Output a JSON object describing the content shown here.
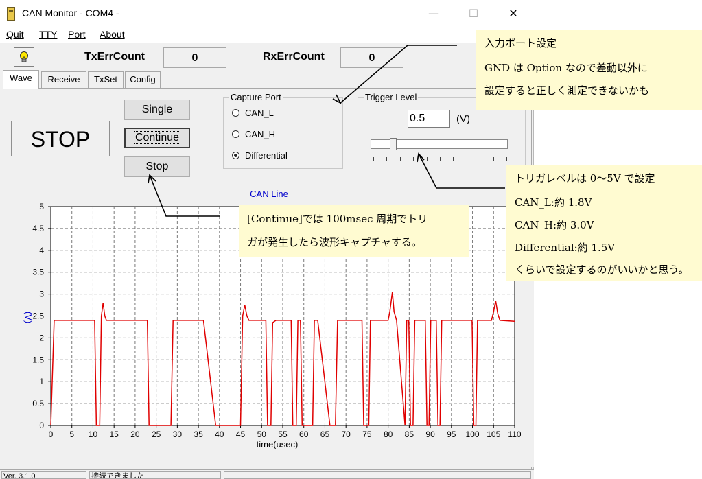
{
  "window": {
    "title": "CAN Monitor - COM4 -",
    "controls": {
      "minimize": "—",
      "maximize": "☐",
      "close": "✕"
    }
  },
  "menu": [
    "Quit",
    "TTY",
    "Port",
    "About"
  ],
  "status_row": {
    "tx_label": "TxErrCount",
    "tx_value": "0",
    "rx_label": "RxErrCount",
    "rx_value": "0"
  },
  "tabs": [
    "Wave",
    "Receive",
    "TxSet",
    "Config"
  ],
  "active_tab": "Wave",
  "state_display": "STOP",
  "buttons": {
    "single": "Single",
    "continue": "Continue",
    "stop": "Stop"
  },
  "capture_port": {
    "title": "Capture Port",
    "options": [
      "CAN_L",
      "CAN_H",
      "Differential"
    ],
    "selected": "Differential"
  },
  "trigger": {
    "title": "Trigger Level",
    "value": "0.5",
    "unit": "(V)",
    "slider_level_fraction": 0.1
  },
  "statusbar": {
    "version": "Ver. 3.1.0",
    "message": "接続できました",
    "extra": ""
  },
  "callouts": {
    "port": [
      "入力ポート設定",
      "GND は Option なので差動以外に",
      "設定すると正しく測定できないかも"
    ],
    "trigger": [
      "トリガレベルは 0～5V で設定",
      "CAN_L:約 1.8V",
      "CAN_H:約 3.0V",
      "Differential:約 1.5V",
      "くらいで設定するのがいいかと思う。"
    ],
    "continue": [
      "[Continue]では 100msec 周期でトリ",
      "ガが発生したら波形キャプチャする。"
    ]
  },
  "colors": {
    "trace": "#e00000",
    "title_blue": "#0000cc",
    "callout_bg": "#fffbd1",
    "grid": "#7a7a7a"
  },
  "chart_data": {
    "type": "line",
    "title": "CAN Line",
    "xlabel": "time(usec)",
    "ylabel": "(V)",
    "xlim": [
      0,
      110
    ],
    "ylim": [
      0,
      5
    ],
    "xticks": [
      0,
      5,
      10,
      15,
      20,
      25,
      30,
      35,
      40,
      45,
      50,
      55,
      60,
      65,
      70,
      75,
      80,
      85,
      90,
      95,
      100,
      105,
      110
    ],
    "yticks": [
      0,
      0.5,
      1,
      1.5,
      2,
      2.5,
      3,
      3.5,
      4,
      4.5,
      5
    ],
    "grid": true,
    "series": [
      {
        "x": [
          0,
          0.8,
          1.2,
          10.4,
          10.8,
          11.6,
          12,
          12.4,
          12.8,
          13.2,
          14,
          14.5,
          19,
          22.9,
          23.3,
          23.7,
          28.5,
          29,
          35.8,
          36.2,
          39.1,
          39.5,
          45,
          45.5,
          46,
          46.5,
          47,
          51,
          51.4,
          52.2,
          52.6,
          53.4,
          57,
          57.4,
          58.2,
          58.6,
          59.2,
          59.6,
          62.1,
          62.5,
          62.9,
          63.3,
          66.2,
          66.6,
          67.5,
          68,
          68.4,
          68.8,
          73.8,
          74.2,
          75.4,
          75.8,
          80,
          80.4,
          81,
          81.4,
          82,
          84,
          84.4,
          84.9,
          85.3,
          85.9,
          86.3,
          88.8,
          89.2,
          89.7,
          90.1,
          91.4,
          91.8,
          92.3,
          92.7,
          99.9,
          100.3,
          100.8,
          101.2,
          104.5,
          105,
          105.5,
          106,
          106.5,
          110
        ],
        "values": [
          0,
          2.4,
          2.4,
          2.4,
          0,
          0,
          2.5,
          2.8,
          2.5,
          2.4,
          2.4,
          2.4,
          2.4,
          2.4,
          0,
          0,
          0,
          2.4,
          2.4,
          2.4,
          0,
          0,
          0,
          2.5,
          2.75,
          2.5,
          2.4,
          2.4,
          0,
          0,
          2.35,
          2.4,
          2.4,
          0,
          0,
          2.4,
          2.4,
          0,
          0,
          2.4,
          2.4,
          2.4,
          0,
          0,
          0,
          2.4,
          2.4,
          2.4,
          2.4,
          0,
          0,
          2.4,
          2.4,
          2.6,
          3.05,
          2.6,
          2.4,
          0,
          2.4,
          2.4,
          0,
          0,
          2.4,
          2.4,
          0,
          0,
          2.4,
          2.4,
          0,
          0,
          2.4,
          2.4,
          0,
          0,
          2.4,
          2.4,
          2.6,
          2.85,
          2.55,
          2.4,
          2.38
        ]
      }
    ]
  }
}
